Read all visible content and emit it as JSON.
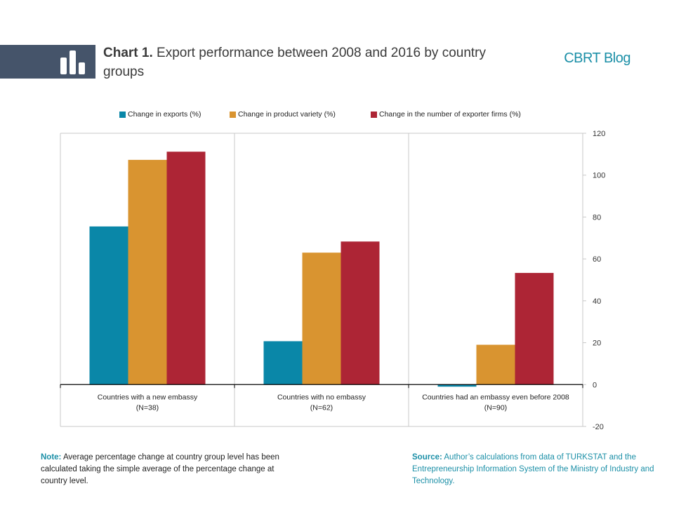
{
  "header": {
    "title_label": "Chart 1.",
    "title_text": "Export performance between 2008 and 2016 by country groups",
    "brand": "CBRT Blog",
    "banner_icon": "bar-chart-icon"
  },
  "colors": {
    "banner": "#45546a",
    "accent": "#1b8fa7"
  },
  "chart_data": {
    "type": "bar",
    "categories": [
      [
        "Countries with a new embassy",
        "(N=38)"
      ],
      [
        "Countries with no embassy",
        "(N=62)"
      ],
      [
        "Countries had an embassy even before 2008",
        "(N=90)"
      ]
    ],
    "series": [
      {
        "name": "Change in exports (%)",
        "color": "#0a87a8",
        "values": [
          75.5,
          20.7,
          -1.0
        ]
      },
      {
        "name": "Change in product variety (%)",
        "color": "#d99430",
        "values": [
          107.3,
          63.0,
          19.0
        ]
      },
      {
        "name": "Change in the number of exporter firms (%)",
        "color": "#ad2535",
        "values": [
          111.2,
          68.3,
          53.3
        ]
      }
    ],
    "ylim": [
      -20,
      120
    ],
    "yticks": [
      -20,
      0,
      20,
      40,
      60,
      80,
      100,
      120
    ],
    "y_axis_side": "right",
    "legend_position": "top",
    "grid": "vertical category separators"
  },
  "footer": {
    "note_label": "Note:",
    "note_text": "Average percentage change at country group level has been calculated taking the simple average of the percentage change at country level.",
    "source_label": "Source:",
    "source_text": "Author’s calculations from data of TURKSTAT and the Entrepreneurship Information System of the Ministry of Industry and Technology."
  }
}
